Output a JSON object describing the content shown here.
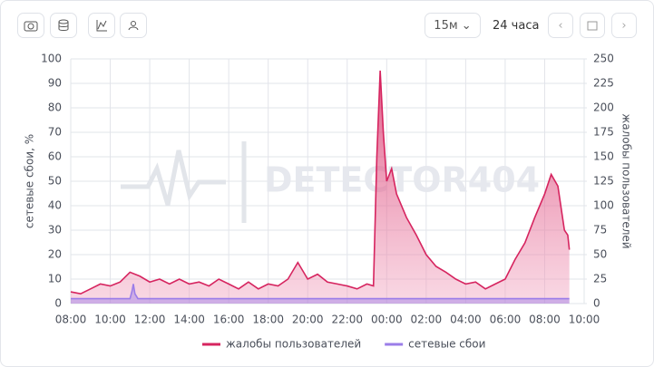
{
  "toolbar": {
    "interval": "15м",
    "range": "24 часа"
  },
  "watermark": "DETECTOR404",
  "chart_data": {
    "type": "area",
    "y_label": "сетевые сбои, %",
    "y2_label": "жалобы пользователей",
    "xlim": [
      0,
      26
    ],
    "xticks": [
      {
        "value": 0,
        "label": "08:00"
      },
      {
        "value": 2,
        "label": "10:00"
      },
      {
        "value": 4,
        "label": "12:00"
      },
      {
        "value": 6,
        "label": "14:00"
      },
      {
        "value": 8,
        "label": "16:00"
      },
      {
        "value": 10,
        "label": "18:00"
      },
      {
        "value": 12,
        "label": "20:00"
      },
      {
        "value": 14,
        "label": "22:00"
      },
      {
        "value": 16,
        "label": "00:00"
      },
      {
        "value": 18,
        "label": "02:00"
      },
      {
        "value": 20,
        "label": "04:00"
      },
      {
        "value": 22,
        "label": "06:00"
      },
      {
        "value": 24,
        "label": "08:00"
      },
      {
        "value": 26,
        "label": "10:00"
      }
    ],
    "ylim": [
      0,
      100
    ],
    "yticks": [
      0,
      10,
      20,
      30,
      40,
      50,
      60,
      70,
      80,
      90,
      100
    ],
    "y2lim": [
      0,
      250
    ],
    "y2ticks": [
      0,
      25,
      50,
      75,
      100,
      125,
      150,
      175,
      200,
      225,
      250
    ],
    "grid": true,
    "series": [
      {
        "name": "жалобы пользователей",
        "color": "#d6245f",
        "axis": "y2",
        "x": [
          0,
          0.5,
          1,
          1.5,
          2,
          2.5,
          3,
          3.5,
          4,
          4.5,
          5,
          5.5,
          6,
          6.5,
          7,
          7.5,
          8,
          8.5,
          9,
          9.5,
          10,
          10.5,
          11,
          11.5,
          12,
          12.5,
          13,
          13.5,
          14,
          14.5,
          15,
          15.33,
          15.5,
          15.67,
          15.83,
          16,
          16.25,
          16.5,
          17,
          17.5,
          18,
          18.5,
          19,
          19.5,
          20,
          20.5,
          21,
          21.5,
          22,
          22.5,
          23,
          23.5,
          24,
          24.33,
          24.67,
          25,
          25.17,
          25.25
        ],
        "values": [
          12,
          10,
          15,
          20,
          18,
          22,
          32,
          28,
          22,
          25,
          20,
          25,
          20,
          22,
          18,
          25,
          20,
          15,
          22,
          15,
          20,
          18,
          25,
          42,
          25,
          30,
          22,
          20,
          18,
          15,
          20,
          18,
          150,
          238,
          175,
          125,
          138,
          112,
          88,
          70,
          50,
          38,
          32,
          25,
          20,
          22,
          15,
          20,
          25,
          45,
          62,
          88,
          112,
          132,
          120,
          75,
          70,
          55
        ]
      },
      {
        "name": "сетевые сбои",
        "color": "#9b7de8",
        "axis": "y",
        "x": [
          0,
          3,
          3.1,
          3.17,
          3.25,
          3.4,
          6,
          12,
          15.5,
          20,
          25.25
        ],
        "values": [
          2,
          2,
          5,
          8,
          4,
          2,
          2,
          2,
          2,
          2,
          2
        ]
      }
    ]
  }
}
